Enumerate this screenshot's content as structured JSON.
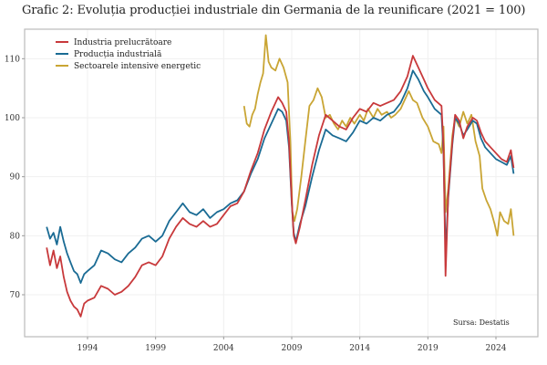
{
  "title": "Grafic 2: Evoluția producției industriale din Germania de la reunificare (2021 = 100)",
  "source": "Sursa: Destatis",
  "chart_data": {
    "type": "line",
    "title": "Grafic 2: Evoluția producției industriale din Germania de la reunificare (2021 = 100)",
    "xlabel": "",
    "ylabel": "",
    "xlim": [
      1989.5,
      2026.5
    ],
    "ylim": [
      63,
      116
    ],
    "xticks": [
      1994,
      1999,
      2004,
      2009,
      2014,
      2019,
      2024
    ],
    "xtick_labels": [
      "1994",
      "1999",
      "2004",
      "2009",
      "2014",
      "2019",
      "2024"
    ],
    "yticks": [
      70,
      80,
      90,
      100,
      110
    ],
    "ytick_labels": [
      "70",
      "80",
      "90",
      "100",
      "110"
    ],
    "grid": true,
    "legend_position": "top-left",
    "annotations": [
      "Sursa: Destatis"
    ],
    "series": [
      {
        "name": "Industria prelucrătoare",
        "color": "#c8393b",
        "points": [
          [
            1991.0,
            78.0
          ],
          [
            1991.25,
            75.0
          ],
          [
            1991.5,
            77.5
          ],
          [
            1991.75,
            74.5
          ],
          [
            1992.0,
            76.5
          ],
          [
            1992.25,
            73.0
          ],
          [
            1992.5,
            70.5
          ],
          [
            1992.75,
            69.0
          ],
          [
            1993.0,
            68.0
          ],
          [
            1993.25,
            67.5
          ],
          [
            1993.5,
            66.3
          ],
          [
            1993.75,
            68.5
          ],
          [
            1994.0,
            69.0
          ],
          [
            1994.5,
            69.5
          ],
          [
            1995.0,
            71.5
          ],
          [
            1995.5,
            71.0
          ],
          [
            1996.0,
            70.0
          ],
          [
            1996.5,
            70.5
          ],
          [
            1997.0,
            71.5
          ],
          [
            1997.5,
            73.0
          ],
          [
            1998.0,
            75.0
          ],
          [
            1998.5,
            75.5
          ],
          [
            1999.0,
            75.0
          ],
          [
            1999.5,
            76.5
          ],
          [
            2000.0,
            79.5
          ],
          [
            2000.5,
            81.5
          ],
          [
            2001.0,
            83.0
          ],
          [
            2001.5,
            82.0
          ],
          [
            2002.0,
            81.5
          ],
          [
            2002.5,
            82.5
          ],
          [
            2003.0,
            81.5
          ],
          [
            2003.5,
            82.0
          ],
          [
            2004.0,
            83.5
          ],
          [
            2004.5,
            85.0
          ],
          [
            2005.0,
            85.5
          ],
          [
            2005.5,
            87.5
          ],
          [
            2006.0,
            91.0
          ],
          [
            2006.5,
            94.0
          ],
          [
            2007.0,
            98.0
          ],
          [
            2007.5,
            101.0
          ],
          [
            2008.0,
            103.5
          ],
          [
            2008.3,
            102.5
          ],
          [
            2008.6,
            101.0
          ],
          [
            2008.8,
            96.0
          ],
          [
            2009.0,
            86.0
          ],
          [
            2009.15,
            80.0
          ],
          [
            2009.3,
            78.7
          ],
          [
            2009.6,
            81.5
          ],
          [
            2010.0,
            86.0
          ],
          [
            2010.5,
            92.0
          ],
          [
            2011.0,
            97.0
          ],
          [
            2011.5,
            100.5
          ],
          [
            2012.0,
            99.5
          ],
          [
            2012.5,
            98.5
          ],
          [
            2013.0,
            98.0
          ],
          [
            2013.5,
            100.0
          ],
          [
            2014.0,
            101.5
          ],
          [
            2014.5,
            101.0
          ],
          [
            2015.0,
            102.5
          ],
          [
            2015.5,
            102.0
          ],
          [
            2016.0,
            102.5
          ],
          [
            2016.5,
            103.0
          ],
          [
            2017.0,
            104.5
          ],
          [
            2017.5,
            107.0
          ],
          [
            2017.9,
            110.5
          ],
          [
            2018.3,
            108.5
          ],
          [
            2018.7,
            106.5
          ],
          [
            2019.0,
            105.0
          ],
          [
            2019.5,
            103.0
          ],
          [
            2020.0,
            102.0
          ],
          [
            2020.15,
            95.0
          ],
          [
            2020.3,
            73.2
          ],
          [
            2020.5,
            87.0
          ],
          [
            2020.8,
            96.0
          ],
          [
            2021.0,
            100.5
          ],
          [
            2021.3,
            99.5
          ],
          [
            2021.6,
            96.5
          ],
          [
            2021.9,
            98.5
          ],
          [
            2022.3,
            100.0
          ],
          [
            2022.6,
            99.5
          ],
          [
            2022.9,
            97.5
          ],
          [
            2023.2,
            96.0
          ],
          [
            2023.6,
            95.0
          ],
          [
            2024.0,
            94.0
          ],
          [
            2024.4,
            93.0
          ],
          [
            2024.8,
            92.5
          ],
          [
            2025.1,
            94.5
          ],
          [
            2025.3,
            91.5
          ]
        ]
      },
      {
        "name": "Producția industrială",
        "color": "#1a6b94",
        "points": [
          [
            1991.0,
            81.5
          ],
          [
            1991.25,
            79.5
          ],
          [
            1991.5,
            80.5
          ],
          [
            1991.75,
            78.5
          ],
          [
            1992.0,
            81.5
          ],
          [
            1992.25,
            79.0
          ],
          [
            1992.5,
            77.0
          ],
          [
            1992.75,
            75.5
          ],
          [
            1993.0,
            74.0
          ],
          [
            1993.25,
            73.5
          ],
          [
            1993.5,
            72.0
          ],
          [
            1993.75,
            73.5
          ],
          [
            1994.0,
            74.0
          ],
          [
            1994.5,
            75.0
          ],
          [
            1995.0,
            77.5
          ],
          [
            1995.5,
            77.0
          ],
          [
            1996.0,
            76.0
          ],
          [
            1996.5,
            75.5
          ],
          [
            1997.0,
            77.0
          ],
          [
            1997.5,
            78.0
          ],
          [
            1998.0,
            79.5
          ],
          [
            1998.5,
            80.0
          ],
          [
            1999.0,
            79.0
          ],
          [
            1999.5,
            80.0
          ],
          [
            2000.0,
            82.5
          ],
          [
            2000.5,
            84.0
          ],
          [
            2001.0,
            85.5
          ],
          [
            2001.5,
            84.0
          ],
          [
            2002.0,
            83.5
          ],
          [
            2002.5,
            84.5
          ],
          [
            2003.0,
            83.0
          ],
          [
            2003.5,
            84.0
          ],
          [
            2004.0,
            84.5
          ],
          [
            2004.5,
            85.5
          ],
          [
            2005.0,
            86.0
          ],
          [
            2005.5,
            87.5
          ],
          [
            2006.0,
            90.5
          ],
          [
            2006.5,
            93.0
          ],
          [
            2007.0,
            96.5
          ],
          [
            2007.5,
            99.0
          ],
          [
            2008.0,
            101.5
          ],
          [
            2008.3,
            101.0
          ],
          [
            2008.6,
            99.5
          ],
          [
            2008.8,
            95.0
          ],
          [
            2009.0,
            85.5
          ],
          [
            2009.15,
            80.5
          ],
          [
            2009.3,
            79.0
          ],
          [
            2009.6,
            82.0
          ],
          [
            2010.0,
            85.0
          ],
          [
            2010.5,
            90.0
          ],
          [
            2011.0,
            94.5
          ],
          [
            2011.5,
            98.0
          ],
          [
            2012.0,
            97.0
          ],
          [
            2012.5,
            96.5
          ],
          [
            2013.0,
            96.0
          ],
          [
            2013.5,
            97.5
          ],
          [
            2014.0,
            99.5
          ],
          [
            2014.5,
            99.0
          ],
          [
            2015.0,
            100.0
          ],
          [
            2015.5,
            99.5
          ],
          [
            2016.0,
            100.5
          ],
          [
            2016.5,
            101.0
          ],
          [
            2017.0,
            102.5
          ],
          [
            2017.5,
            105.0
          ],
          [
            2017.9,
            108.0
          ],
          [
            2018.3,
            106.5
          ],
          [
            2018.7,
            104.5
          ],
          [
            2019.0,
            103.5
          ],
          [
            2019.5,
            101.5
          ],
          [
            2020.0,
            100.5
          ],
          [
            2020.15,
            94.0
          ],
          [
            2020.3,
            77.0
          ],
          [
            2020.5,
            86.5
          ],
          [
            2020.8,
            95.5
          ],
          [
            2021.0,
            100.0
          ],
          [
            2021.3,
            99.0
          ],
          [
            2021.6,
            97.0
          ],
          [
            2021.9,
            98.0
          ],
          [
            2022.3,
            99.5
          ],
          [
            2022.6,
            99.0
          ],
          [
            2022.9,
            96.5
          ],
          [
            2023.2,
            95.0
          ],
          [
            2023.6,
            94.0
          ],
          [
            2024.0,
            93.0
          ],
          [
            2024.4,
            92.5
          ],
          [
            2024.8,
            92.0
          ],
          [
            2025.1,
            93.5
          ],
          [
            2025.3,
            90.5
          ]
        ]
      },
      {
        "name": "Sectoarele intensive energetic",
        "color": "#c9a534",
        "points": [
          [
            2005.5,
            102.0
          ],
          [
            2005.7,
            99.0
          ],
          [
            2005.9,
            98.5
          ],
          [
            2006.1,
            100.5
          ],
          [
            2006.3,
            101.5
          ],
          [
            2006.5,
            104.0
          ],
          [
            2006.7,
            106.0
          ],
          [
            2006.9,
            107.5
          ],
          [
            2007.1,
            114.0
          ],
          [
            2007.3,
            109.5
          ],
          [
            2007.5,
            108.5
          ],
          [
            2007.8,
            108.0
          ],
          [
            2008.1,
            110.0
          ],
          [
            2008.4,
            108.5
          ],
          [
            2008.7,
            106.0
          ],
          [
            2008.9,
            96.0
          ],
          [
            2009.05,
            84.0
          ],
          [
            2009.2,
            82.5
          ],
          [
            2009.4,
            84.5
          ],
          [
            2009.7,
            90.0
          ],
          [
            2010.0,
            96.0
          ],
          [
            2010.3,
            102.0
          ],
          [
            2010.6,
            103.0
          ],
          [
            2010.9,
            105.0
          ],
          [
            2011.2,
            103.5
          ],
          [
            2011.5,
            100.0
          ],
          [
            2011.8,
            100.5
          ],
          [
            2012.1,
            99.0
          ],
          [
            2012.4,
            98.0
          ],
          [
            2012.7,
            99.5
          ],
          [
            2013.0,
            98.5
          ],
          [
            2013.3,
            100.0
          ],
          [
            2013.6,
            99.0
          ],
          [
            2014.0,
            100.5
          ],
          [
            2014.3,
            99.5
          ],
          [
            2014.6,
            101.5
          ],
          [
            2015.0,
            100.0
          ],
          [
            2015.3,
            101.5
          ],
          [
            2015.6,
            100.5
          ],
          [
            2016.0,
            101.0
          ],
          [
            2016.3,
            100.0
          ],
          [
            2016.6,
            100.5
          ],
          [
            2017.0,
            101.5
          ],
          [
            2017.3,
            103.0
          ],
          [
            2017.6,
            104.5
          ],
          [
            2017.9,
            103.0
          ],
          [
            2018.2,
            102.5
          ],
          [
            2018.6,
            100.0
          ],
          [
            2019.0,
            98.5
          ],
          [
            2019.4,
            96.0
          ],
          [
            2019.8,
            95.5
          ],
          [
            2020.0,
            94.0
          ],
          [
            2020.15,
            98.5
          ],
          [
            2020.3,
            84.0
          ],
          [
            2020.5,
            88.0
          ],
          [
            2020.8,
            97.0
          ],
          [
            2021.0,
            100.0
          ],
          [
            2021.3,
            98.5
          ],
          [
            2021.6,
            101.0
          ],
          [
            2021.9,
            99.0
          ],
          [
            2022.2,
            100.5
          ],
          [
            2022.5,
            96.0
          ],
          [
            2022.8,
            93.5
          ],
          [
            2023.0,
            88.0
          ],
          [
            2023.3,
            86.0
          ],
          [
            2023.6,
            84.5
          ],
          [
            2023.9,
            82.0
          ],
          [
            2024.1,
            80.0
          ],
          [
            2024.3,
            84.0
          ],
          [
            2024.6,
            82.5
          ],
          [
            2024.9,
            82.0
          ],
          [
            2025.1,
            84.5
          ],
          [
            2025.3,
            80.0
          ]
        ]
      }
    ]
  }
}
